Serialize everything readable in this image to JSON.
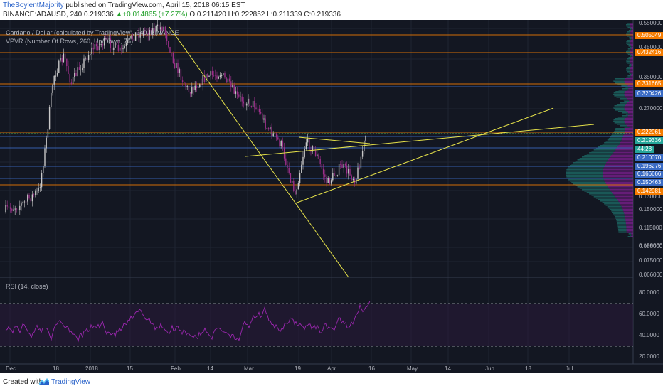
{
  "header": {
    "author": "TheSoylentMajority",
    "published_text": " published on TradingView.com, April 15, 2018 06:15 EST",
    "symbol": "BINANCE:ADAUSD, 240",
    "last_price": "0.219336",
    "change": "+0.014865 (+7.27%)",
    "ohlc_open": "O:0.211420",
    "ohlc_high": "H:0.222852",
    "ohlc_low": "L:0.211339",
    "ohlc_close": "C:0.219336"
  },
  "legend": {
    "main_series": "Cardano / Dollar (calculated by TradingView), 240, BINANCE",
    "vpvr": "VPVR (Number Of Rows, 260, Up/Down, 75)",
    "rsi": "RSI (14, close)"
  },
  "price_axis": {
    "ticks": [
      "0.550000",
      "0.450000",
      "0.350000",
      "0.270000",
      "0.150000",
      "0.130000",
      "0.115000",
      "0.100000",
      "0.085000",
      "0.075000",
      "0.066000"
    ],
    "badges": [
      {
        "label": "0.505049",
        "color": "#f57c00"
      },
      {
        "label": "0.432416",
        "color": "#f57c00"
      },
      {
        "label": "0.331665",
        "color": "#f57c00"
      },
      {
        "label": "0.320426",
        "color": "#3a6bc4"
      },
      {
        "label": "0.222061",
        "color": "#f57c00"
      },
      {
        "label": "0.219336",
        "color": "#26a69a"
      },
      {
        "label": "44:28",
        "color": "#26a69a"
      },
      {
        "label": "0.210070",
        "color": "#3a6bc4"
      },
      {
        "label": "0.196276",
        "color": "#3a6bc4"
      },
      {
        "label": "0.166666",
        "color": "#3a6bc4"
      },
      {
        "label": "0.150463",
        "color": "#3a6bc4"
      },
      {
        "label": "0.142081",
        "color": "#f57c00"
      }
    ]
  },
  "rsi_axis": {
    "ticks": [
      "80.0000",
      "60.0000",
      "40.0000",
      "20.0000"
    ]
  },
  "time_axis": {
    "ticks": [
      "Dec",
      "18",
      "2018",
      "15",
      "Feb",
      "14",
      "Mar",
      "19",
      "Apr",
      "16",
      "May",
      "14",
      "Jun",
      "18",
      "Jul"
    ]
  },
  "footer": {
    "created_with": "Created with",
    "brand": "TradingView"
  },
  "colors": {
    "background": "#131722",
    "orange_level": "#f57c00",
    "blue_level": "#3a6bc4",
    "trendline": "#e6e24a",
    "rsi_line": "#9c27b0"
  }
}
